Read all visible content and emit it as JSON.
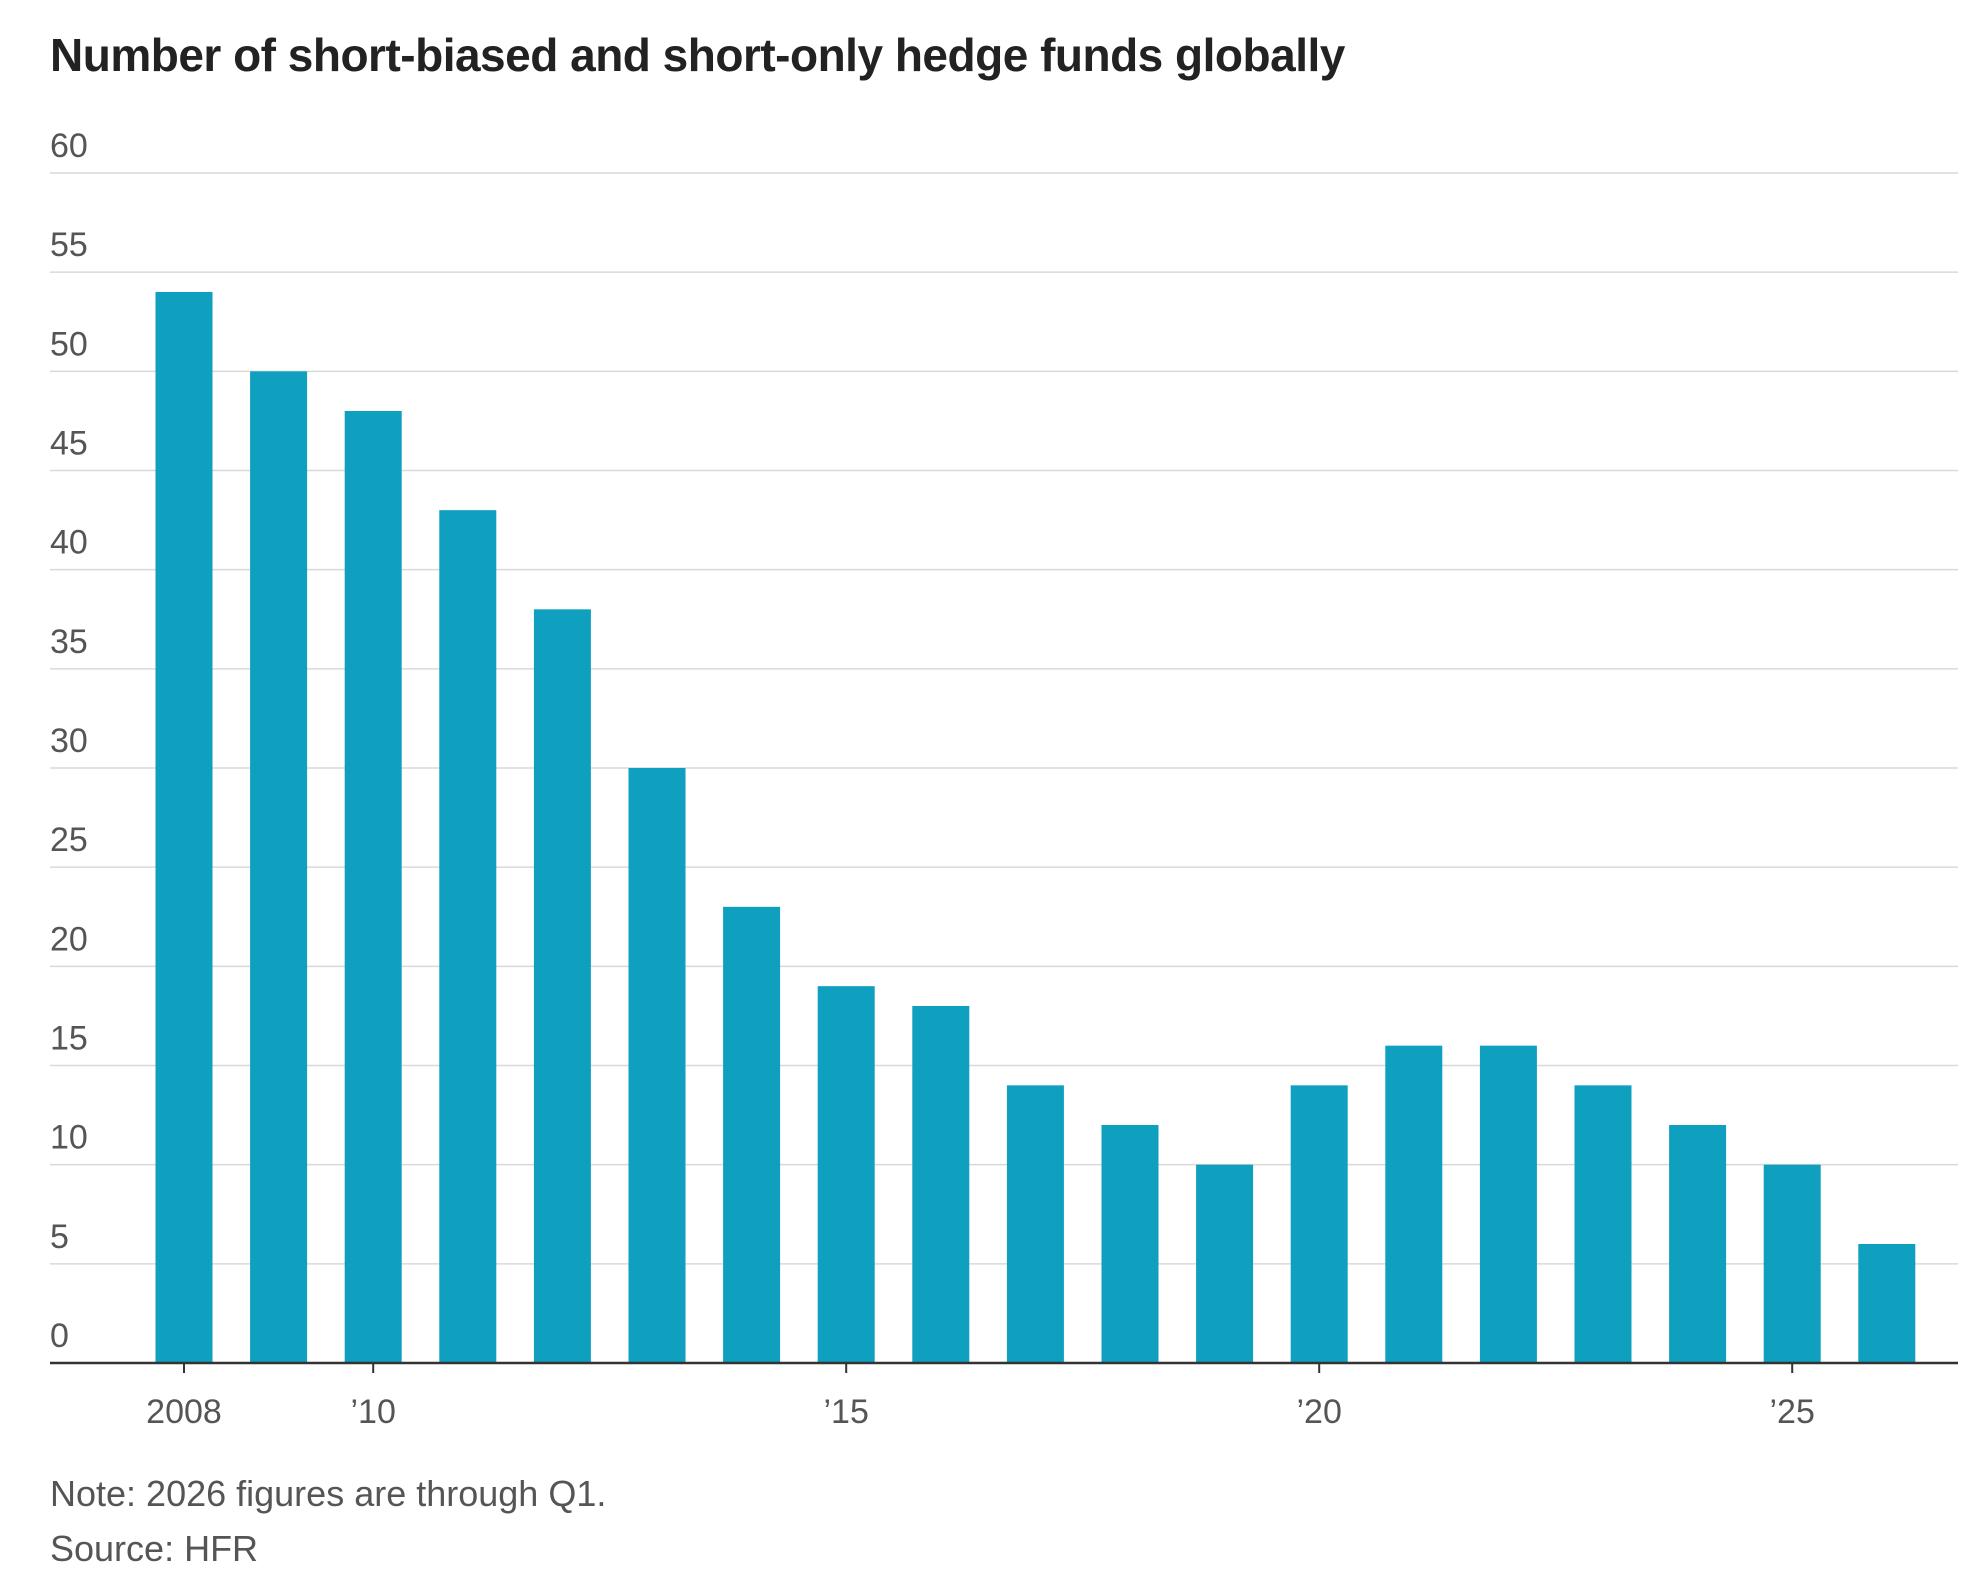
{
  "chart_data": {
    "type": "bar",
    "title": "Number of short-biased and short-only hedge funds globally",
    "xlabel": "",
    "ylabel": "",
    "x": [
      2008,
      2009,
      2010,
      2011,
      2012,
      2013,
      2014,
      2015,
      2016,
      2017,
      2018,
      2019,
      2020,
      2021,
      2022,
      2023,
      2024,
      2025,
      2026
    ],
    "values": [
      54,
      50,
      48,
      43,
      38,
      30,
      23,
      19,
      18,
      14,
      12,
      10,
      14,
      16,
      16,
      14,
      12,
      10,
      6
    ],
    "x_tick_labels": [
      {
        "year": 2008,
        "label": "2008"
      },
      {
        "year": 2010,
        "label": "’10"
      },
      {
        "year": 2015,
        "label": "’15"
      },
      {
        "year": 2020,
        "label": "’20"
      },
      {
        "year": 2025,
        "label": "’25"
      }
    ],
    "y_ticks": [
      0,
      5,
      10,
      15,
      20,
      25,
      30,
      35,
      40,
      45,
      50,
      55,
      60
    ],
    "ylim": [
      0,
      60
    ],
    "grid": true,
    "bar_color": "#0f9fbf",
    "note": "Note: 2026 figures are through Q1.",
    "source": "Source: HFR"
  }
}
